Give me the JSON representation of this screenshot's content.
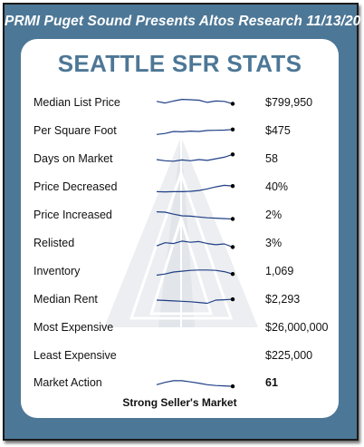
{
  "header": {
    "title": "PRMI Puget Sound Presents Altos Research 11/13/20"
  },
  "card": {
    "title": "SEATTLE SFR STATS"
  },
  "colors": {
    "frame_background": "#4d7796",
    "title_color": "#4d7796",
    "sparkline_color": "#1f3f86",
    "watermark_color": "#d9dce1"
  },
  "watermark_icon": "triangular-building-logo",
  "rows": [
    {
      "label": "Median List Price",
      "value": "$799,950",
      "trend": [
        60,
        52,
        62,
        70,
        68,
        66,
        55,
        62,
        60,
        48
      ]
    },
    {
      "label": "Per Square Foot",
      "value": "$475",
      "trend": [
        35,
        40,
        50,
        48,
        52,
        50,
        55,
        56,
        57,
        60
      ]
    },
    {
      "label": "Days on Market",
      "value": "58",
      "trend": [
        50,
        44,
        42,
        48,
        44,
        50,
        46,
        54,
        62,
        76
      ]
    },
    {
      "label": "Price Decreased",
      "value": "40%",
      "trend": [
        30,
        29,
        30,
        30,
        32,
        36,
        44,
        54,
        62,
        58
      ]
    },
    {
      "label": "Price Increased",
      "value": "2%",
      "trend": [
        70,
        68,
        58,
        50,
        48,
        44,
        40,
        38,
        36,
        34
      ]
    },
    {
      "label": "Relisted",
      "value": "3%",
      "trend": [
        40,
        56,
        52,
        64,
        58,
        62,
        52,
        46,
        50,
        34
      ]
    },
    {
      "label": "Inventory",
      "value": "1,069",
      "trend": [
        34,
        40,
        50,
        54,
        58,
        60,
        60,
        58,
        52,
        40
      ]
    },
    {
      "label": "Median Rent",
      "value": "$2,293",
      "trend": [
        50,
        48,
        46,
        44,
        42,
        38,
        34,
        50,
        52,
        54
      ]
    },
    {
      "label": "Most Expensive",
      "value": "$26,000,000",
      "trend": []
    },
    {
      "label": "Least Expensive",
      "value": "$225,000",
      "trend": []
    },
    {
      "label": "Market Action",
      "value": "61",
      "trend": [
        44,
        56,
        64,
        64,
        58,
        52,
        44,
        40,
        38,
        36
      ]
    }
  ],
  "market_note": "Strong Seller's Market"
}
